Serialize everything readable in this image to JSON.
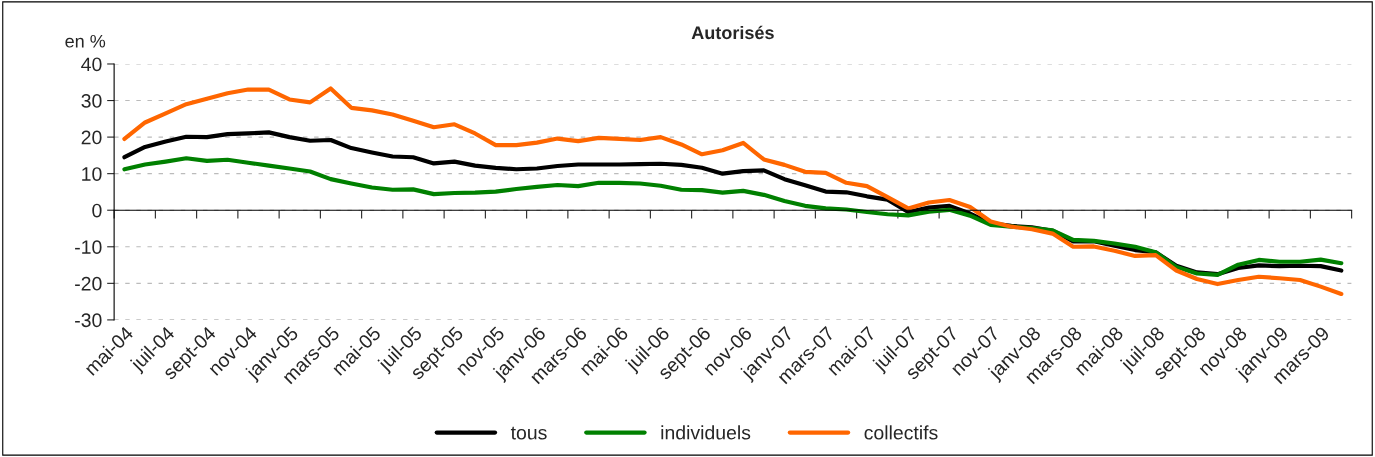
{
  "chart_data": {
    "type": "line",
    "title": "Autorisés",
    "ylabel": "en %",
    "categories": [
      "mai-04",
      null,
      "juil-04",
      null,
      "sept-04",
      null,
      "nov-04",
      null,
      "janv-05",
      null,
      "mars-05",
      null,
      "mai-05",
      null,
      "juil-05",
      null,
      "sept-05",
      null,
      "nov-05",
      null,
      "janv-06",
      null,
      "mars-06",
      null,
      "mai-06",
      null,
      "juil-06",
      null,
      "sept-06",
      null,
      "nov-06",
      null,
      "janv-07",
      null,
      "mars-07",
      null,
      "mai-07",
      null,
      "juil-07",
      null,
      "sept-07",
      null,
      "nov-07",
      null,
      "janv-08",
      null,
      "mars-08",
      null,
      "mai-08",
      null,
      "juil-08",
      null,
      "sept-08",
      null,
      "nov-08",
      null,
      "janv-09",
      null,
      "mars-09",
      null
    ],
    "series": [
      {
        "name": "tous",
        "color": "#000000",
        "values": [
          14.5,
          17.3,
          18.8,
          20.1,
          20,
          20.8,
          21,
          21.3,
          20,
          19,
          19.2,
          17,
          15.8,
          14.7,
          14.5,
          12.8,
          13.3,
          12.2,
          11.6,
          11.2,
          11.4,
          12.1,
          12.5,
          12.5,
          12.5,
          12.6,
          12.7,
          12.4,
          11.6,
          10,
          10.7,
          10.9,
          8.5,
          6.8,
          5.1,
          4.9,
          3.8,
          2.9,
          -0.5,
          0.7,
          1.2,
          -0.9,
          -3.6,
          -4.3,
          -4.7,
          -5.6,
          -8.5,
          -8.5,
          -9.7,
          -10.9,
          -11.5,
          -15.2,
          -17,
          -17.5,
          -15.8,
          -15.1,
          -15.3,
          -15.2,
          -15.3,
          -16.5
        ]
      },
      {
        "name": "individuels",
        "color": "#008000",
        "values": [
          11.2,
          12.5,
          13.3,
          14.2,
          13.5,
          13.8,
          13,
          12.2,
          11.4,
          10.6,
          8.5,
          7.3,
          6.2,
          5.6,
          5.7,
          4.4,
          4.7,
          4.8,
          5.1,
          5.8,
          6.4,
          6.9,
          6.6,
          7.5,
          7.5,
          7.3,
          6.7,
          5.6,
          5.5,
          4.8,
          5.3,
          4.2,
          2.5,
          1.2,
          0.5,
          0.2,
          -0.5,
          -1.1,
          -1.4,
          -0.4,
          0.1,
          -1.5,
          -4,
          -4.5,
          -4.9,
          -5.5,
          -8.1,
          -8.4,
          -9.1,
          -10,
          -11.5,
          -15.5,
          -17.3,
          -17.7,
          -14.9,
          -13.6,
          -14.1,
          -14.1,
          -13.5,
          -14.5
        ]
      },
      {
        "name": "collectifs",
        "color": "#ff6600",
        "values": [
          19.5,
          24,
          26.5,
          29,
          30.5,
          32,
          33,
          33,
          30.3,
          29.5,
          33.3,
          28,
          27.3,
          26.2,
          24.5,
          22.7,
          23.5,
          21,
          17.8,
          17.8,
          18.5,
          19.6,
          18.9,
          19.8,
          19.5,
          19.2,
          20,
          18,
          15.3,
          16.4,
          18.4,
          13.9,
          12.4,
          10.5,
          10.2,
          7.5,
          6.6,
          3.6,
          0.5,
          2.1,
          2.8,
          0.9,
          -3.1,
          -4.5,
          -5.2,
          -6.4,
          -10,
          -9.9,
          -11.1,
          -12.5,
          -12.3,
          -16.5,
          -18.8,
          -20.2,
          -19.1,
          -18.2,
          -18.6,
          -19.1,
          -20.9,
          -22.9
        ]
      }
    ],
    "ylim": [
      -30,
      40
    ],
    "yticks": [
      -30,
      -20,
      -10,
      0,
      10,
      20,
      30,
      40
    ],
    "grid": "y",
    "legend": "bottom",
    "marker": "none",
    "line_style": "solid"
  }
}
